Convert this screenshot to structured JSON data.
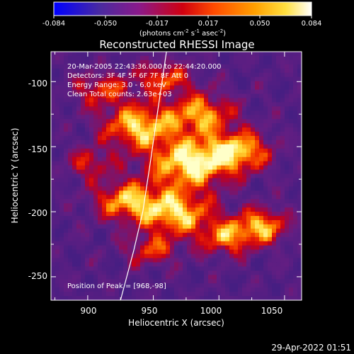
{
  "colorbar": {
    "ticks": [
      "-0.084",
      "-0.050",
      "-0.017",
      "0.017",
      "0.050",
      "0.084"
    ],
    "unit_parts": [
      "(photons cm",
      "-2",
      " s",
      "-1",
      " asec",
      "-2",
      ")"
    ]
  },
  "chart_data": {
    "type": "heatmap",
    "title": "Reconstructed RHESSI Image",
    "xlabel": "Heliocentric X (arcsec)",
    "ylabel": "Heliocentric Y (arcsec)",
    "xlim": [
      872,
      1063
    ],
    "ylim": [
      -268,
      -77
    ],
    "xticks": [
      900,
      950,
      1000,
      1050
    ],
    "yticks": [
      -100,
      -150,
      -200,
      -250
    ],
    "zlim": [
      -0.084,
      0.084
    ],
    "colormap": [
      "#0000ff",
      "#52249a",
      "#6a2a8a",
      "#b0008a",
      "#d40000",
      "#ff6a00",
      "#ffa000",
      "#ffe040",
      "#ffffff"
    ],
    "annotations": [
      "20-Mar-2005 22:43:36.000 to 22:44:20.000",
      "Detectors: 3F 4F 5F 6F 7F 8F  Att 0",
      "Energy Range: 3.0 - 6.0 keV",
      "Clean     Total counts: 2.63e+03"
    ],
    "peak_label": "Position of Peak = [968,-98]",
    "peak": [
      968,
      -98
    ],
    "limb_curve": [
      [
        925,
        -268
      ],
      [
        935,
        -230
      ],
      [
        942,
        -200
      ],
      [
        948,
        -160
      ],
      [
        953,
        -125
      ],
      [
        960,
        -77
      ]
    ]
  },
  "timestamp": "29-Apr-2022 01:51"
}
